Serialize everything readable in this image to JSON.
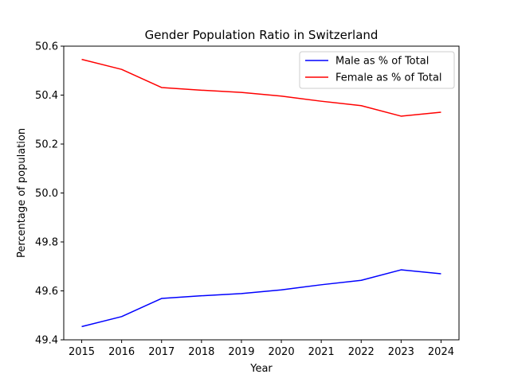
{
  "chart_data": {
    "type": "line",
    "title": "Gender Population Ratio in Switzerland",
    "xlabel": "Year",
    "ylabel": "Percentage of population",
    "x": [
      2015,
      2016,
      2017,
      2018,
      2019,
      2020,
      2021,
      2022,
      2023,
      2024
    ],
    "ylim": [
      49.4,
      50.6
    ],
    "yticks": [
      "49.4",
      "49.6",
      "49.8",
      "50.0",
      "50.2",
      "50.4",
      "50.6"
    ],
    "legend_position": "top-right",
    "grid": false,
    "series": [
      {
        "name": "Male as % of Total",
        "color": "#0000ff",
        "values": [
          49.454,
          49.495,
          49.569,
          49.58,
          49.589,
          49.604,
          49.625,
          49.643,
          49.686,
          49.67
        ]
      },
      {
        "name": "Female as % of Total",
        "color": "#ff0000",
        "values": [
          50.546,
          50.505,
          50.431,
          50.42,
          50.411,
          50.396,
          50.375,
          50.357,
          50.314,
          50.33
        ]
      }
    ]
  }
}
